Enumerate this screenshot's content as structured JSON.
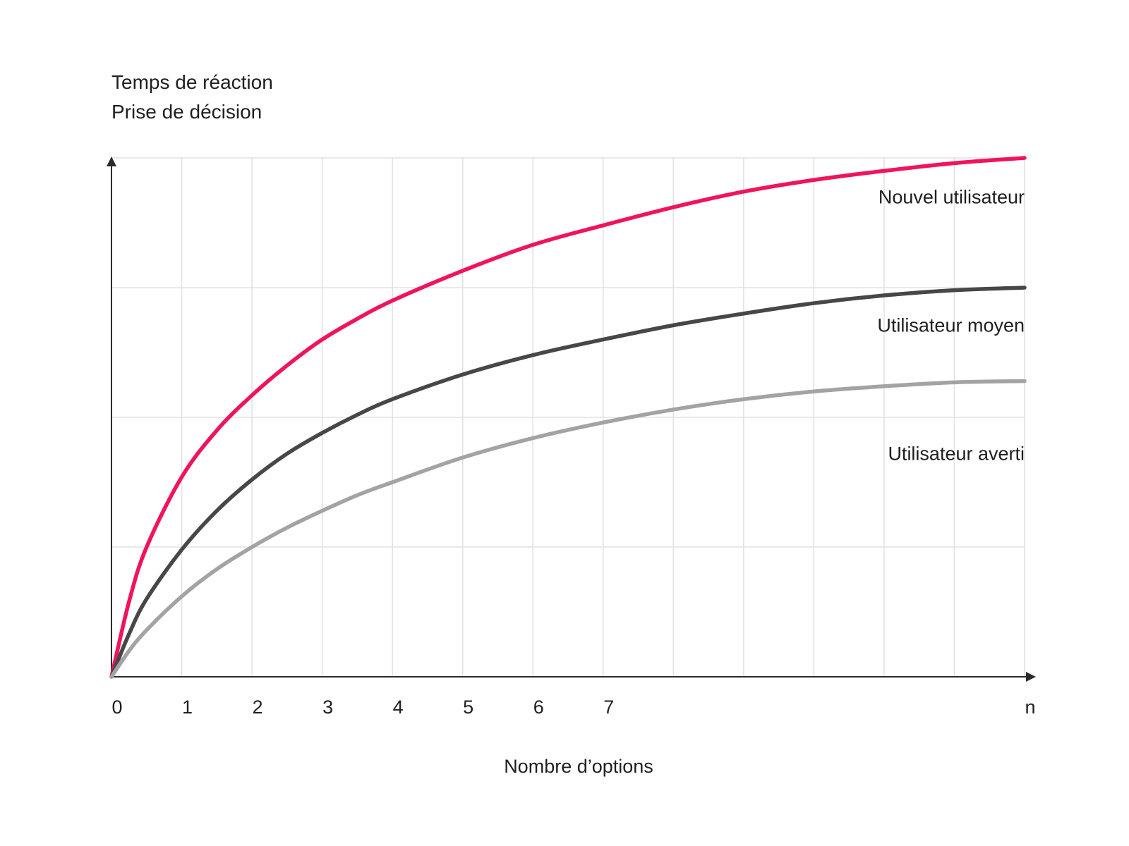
{
  "chart_data": {
    "type": "line",
    "ylabel_lines": [
      "Temps de réaction",
      "Prise de décision"
    ],
    "xlabel": "Nombre d’options",
    "x_ticks": [
      {
        "value": 0,
        "label": "0"
      },
      {
        "value": 1,
        "label": "1"
      },
      {
        "value": 2,
        "label": "2"
      },
      {
        "value": 3,
        "label": "3"
      },
      {
        "value": 4,
        "label": "4"
      },
      {
        "value": 5,
        "label": "5"
      },
      {
        "value": 6,
        "label": "6"
      },
      {
        "value": 7,
        "label": "7"
      },
      {
        "value": 13,
        "label": "n"
      }
    ],
    "xlim": [
      0,
      13
    ],
    "ylim": [
      0,
      4
    ],
    "grid": true,
    "grid_x_step": 1,
    "grid_y_step": 1,
    "series": [
      {
        "name": "Nouvel utilisateur",
        "color": "#f0145a",
        "x": [
          0,
          0.25,
          0.5,
          1,
          1.5,
          2,
          2.5,
          3,
          3.5,
          4,
          5,
          6,
          7,
          8,
          9,
          10,
          11,
          12,
          13
        ],
        "values": [
          0,
          0.58,
          1.0,
          1.54,
          1.9,
          2.17,
          2.4,
          2.6,
          2.76,
          2.9,
          3.13,
          3.33,
          3.48,
          3.62,
          3.74,
          3.83,
          3.9,
          3.96,
          4.0
        ]
      },
      {
        "name": "Utilisateur moyen",
        "color": "#474747",
        "x": [
          0,
          0.25,
          0.5,
          1,
          1.5,
          2,
          2.5,
          3,
          3.5,
          4,
          5,
          6,
          7,
          8,
          9,
          10,
          11,
          12,
          13
        ],
        "values": [
          0,
          0.33,
          0.6,
          0.98,
          1.28,
          1.52,
          1.72,
          1.88,
          2.02,
          2.14,
          2.33,
          2.48,
          2.6,
          2.71,
          2.8,
          2.88,
          2.94,
          2.98,
          3.0
        ]
      },
      {
        "name": "Utilisateur averti",
        "color": "#a3a3a3",
        "x": [
          0,
          0.25,
          0.5,
          1,
          1.5,
          2,
          2.5,
          3,
          3.5,
          4,
          5,
          6,
          7,
          8,
          9,
          10,
          11,
          12,
          13
        ],
        "values": [
          0,
          0.2,
          0.36,
          0.62,
          0.83,
          1.0,
          1.15,
          1.28,
          1.4,
          1.5,
          1.69,
          1.84,
          1.96,
          2.06,
          2.14,
          2.2,
          2.24,
          2.27,
          2.28
        ]
      }
    ],
    "series_labels": [
      {
        "text": "Nouvel utilisateur",
        "x": 13,
        "y": 3.65
      },
      {
        "text": "Utilisateur moyen",
        "x": 13,
        "y": 2.66
      },
      {
        "text": "Utilisateur averti",
        "x": 13,
        "y": 1.67
      }
    ]
  },
  "colors": {
    "axis": "#2b2b2b",
    "grid": "#e2e2e2",
    "text": "#1f1f1f"
  }
}
